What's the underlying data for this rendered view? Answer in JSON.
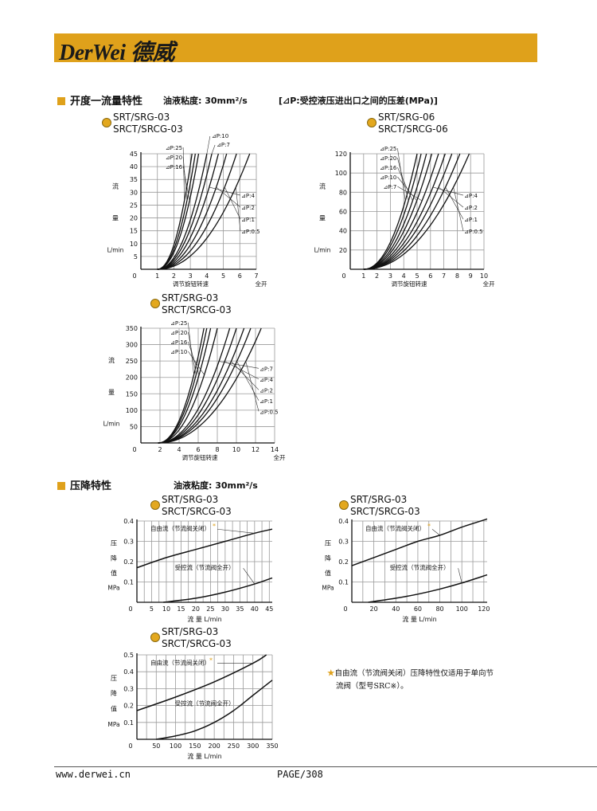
{
  "header": {
    "logo_text": "DerWei 德威",
    "brand_color": "#DFA11B"
  },
  "section1": {
    "title": "开度一流量特性",
    "viscosity": "油液粘度: 30mm²/s",
    "note": "[⊿P:受控液压进出口之间的压差(MPa)]"
  },
  "section2": {
    "title": "压降特性",
    "viscosity": "油液粘度: 30mm²/s"
  },
  "footnote": {
    "star": "★",
    "line1": "自由流（节流阀关闭）压降特性仅适用于单向节",
    "line2": "流阀（型号SRC※）。"
  },
  "footer": {
    "website": "www.derwei.cn",
    "page": "PAGE/308"
  },
  "chart_data": [
    {
      "type": "line",
      "model": [
        "SRT/SRG-03",
        "SRCT/SRCG-03"
      ],
      "xlabel": "调节旋钮转速",
      "xlabel_end": "全开",
      "ylabel": [
        "流",
        "量",
        "L/min"
      ],
      "xlim": [
        0,
        7
      ],
      "ylim": [
        0,
        45
      ],
      "xticks": [
        0,
        1,
        2,
        3,
        4,
        5,
        6,
        7
      ],
      "yticks": [
        5,
        10,
        15,
        20,
        25,
        30,
        35,
        40,
        45
      ],
      "grid": true,
      "series": [
        {
          "name": "⊿P:25",
          "start": 1,
          "x_at_max": 3.1,
          "label_side": "left"
        },
        {
          "name": "⊿P:20",
          "start": 1,
          "x_at_max": 3.3,
          "label_side": "left"
        },
        {
          "name": "⊿P:16",
          "start": 1,
          "x_at_max": 3.5,
          "label_side": "left"
        },
        {
          "name": "⊿P:10",
          "start": 1,
          "x_at_max": 4.0,
          "label_side": "top"
        },
        {
          "name": "⊿P:7",
          "start": 1,
          "x_at_max": 4.3,
          "label_side": "top"
        },
        {
          "name": "⊿P:4",
          "start": 1,
          "x_at_max": 4.7,
          "label_side": "right"
        },
        {
          "name": "⊿P:2",
          "start": 1,
          "x_at_max": 5.2,
          "label_side": "right"
        },
        {
          "name": "⊿P:1",
          "start": 1,
          "x_at_max": 5.8,
          "label_side": "right"
        },
        {
          "name": "⊿P:0.5",
          "start": 1,
          "x_at_max": 6.6,
          "label_side": "right"
        }
      ]
    },
    {
      "type": "line",
      "model": [
        "SRT/SRG-06",
        "SRCT/SRCG-06"
      ],
      "xlabel": "调节旋钮转速",
      "xlabel_end": "全开",
      "ylabel": [
        "流",
        "量",
        "L/min"
      ],
      "xlim": [
        0,
        10
      ],
      "ylim": [
        0,
        120
      ],
      "xticks": [
        0,
        1,
        2,
        3,
        4,
        5,
        6,
        7,
        8,
        9,
        10
      ],
      "yticks": [
        20,
        40,
        60,
        80,
        100,
        120
      ],
      "grid": true,
      "series": [
        {
          "name": "⊿P:25",
          "start": 1,
          "x_at_max": 5.0,
          "label_side": "left"
        },
        {
          "name": "⊿P:20",
          "start": 1,
          "x_at_max": 5.3,
          "label_side": "left"
        },
        {
          "name": "⊿P:16",
          "start": 1,
          "x_at_max": 5.7,
          "label_side": "left"
        },
        {
          "name": "⊿P:10",
          "start": 1,
          "x_at_max": 6.1,
          "label_side": "left"
        },
        {
          "name": "⊿P:7",
          "start": 1,
          "x_at_max": 6.6,
          "label_side": "left"
        },
        {
          "name": "⊿P:4",
          "start": 1,
          "x_at_max": 7.1,
          "label_side": "right"
        },
        {
          "name": "⊿P:2",
          "start": 1,
          "x_at_max": 7.6,
          "label_side": "right"
        },
        {
          "name": "⊿P:1",
          "start": 1,
          "x_at_max": 8.2,
          "label_side": "right"
        },
        {
          "name": "⊿P:0.5",
          "start": 1,
          "x_at_max": 8.9,
          "label_side": "right"
        }
      ]
    },
    {
      "type": "line",
      "model": [
        "SRT/SRG-03",
        "SRCT/SRCG-03"
      ],
      "xlabel": "调节旋钮转速",
      "xlabel_end": "全开",
      "ylabel": [
        "流",
        "量",
        "L/min"
      ],
      "xlim": [
        0,
        14
      ],
      "ylim": [
        0,
        350
      ],
      "xticks": [
        0,
        2,
        4,
        6,
        8,
        10,
        12,
        14
      ],
      "yticks": [
        50,
        100,
        150,
        200,
        250,
        300,
        350
      ],
      "grid": true,
      "series": [
        {
          "name": "⊿P:25",
          "start": 1.8,
          "x_at_max": 6.6,
          "label_side": "left"
        },
        {
          "name": "⊿P:20",
          "start": 1.8,
          "x_at_max": 6.9,
          "label_side": "left"
        },
        {
          "name": "⊿P:16",
          "start": 1.8,
          "x_at_max": 7.3,
          "label_side": "left"
        },
        {
          "name": "⊿P:10",
          "start": 1.8,
          "x_at_max": 8.0,
          "label_side": "left"
        },
        {
          "name": "⊿P:7",
          "start": 1.8,
          "x_at_max": 9.3,
          "label_side": "right"
        },
        {
          "name": "⊿P:4",
          "start": 1.8,
          "x_at_max": 10.0,
          "label_side": "right"
        },
        {
          "name": "⊿P:2",
          "start": 1.8,
          "x_at_max": 10.8,
          "label_side": "right"
        },
        {
          "name": "⊿P:1",
          "start": 1.8,
          "x_at_max": 11.5,
          "label_side": "right"
        },
        {
          "name": "⊿P:0.5",
          "start": 1.8,
          "x_at_max": 12.6,
          "label_side": "right"
        }
      ]
    },
    {
      "type": "line",
      "model": [
        "SRT/SRG-03",
        "SRCT/SRCG-03"
      ],
      "xlabel": "流 量  L/min",
      "ylabel": [
        "压",
        "降",
        "值",
        "MPa"
      ],
      "xlim": [
        0,
        46
      ],
      "ylim": [
        0,
        0.4
      ],
      "xticks": [
        0,
        5,
        10,
        15,
        20,
        25,
        30,
        35,
        40,
        45
      ],
      "yticks": [
        0.1,
        0.2,
        0.3,
        0.4
      ],
      "grid": true,
      "series": [
        {
          "name": "自由流（节流阀关闭）",
          "starred": true,
          "points": [
            [
              0,
              0.17
            ],
            [
              10,
              0.22
            ],
            [
              20,
              0.26
            ],
            [
              30,
              0.3
            ],
            [
              40,
              0.34
            ],
            [
              46,
              0.36
            ]
          ]
        },
        {
          "name": "受控流（节流阀全开）",
          "points": [
            [
              9,
              0
            ],
            [
              20,
              0.02
            ],
            [
              30,
              0.05
            ],
            [
              40,
              0.09
            ],
            [
              46,
              0.12
            ]
          ]
        }
      ]
    },
    {
      "type": "line",
      "model": [
        "SRT/SRG-03",
        "SRCT/SRCG-03"
      ],
      "xlabel": "流 量  L/min",
      "ylabel": [
        "压",
        "降",
        "值",
        "MPa"
      ],
      "xlim": [
        0,
        123
      ],
      "ylim": [
        0,
        0.4
      ],
      "xticks": [
        0,
        20,
        40,
        60,
        80,
        100,
        120
      ],
      "yticks": [
        0.1,
        0.2,
        0.3,
        0.4
      ],
      "grid": true,
      "series": [
        {
          "name": "自由流（节流阀关闭）",
          "starred": true,
          "points": [
            [
              0,
              0.18
            ],
            [
              20,
              0.22
            ],
            [
              40,
              0.26
            ],
            [
              60,
              0.3
            ],
            [
              80,
              0.33
            ],
            [
              100,
              0.37
            ],
            [
              123,
              0.41
            ]
          ]
        },
        {
          "name": "受控流（节流阀全开）",
          "points": [
            [
              15,
              0
            ],
            [
              40,
              0.02
            ],
            [
              60,
              0.04
            ],
            [
              80,
              0.065
            ],
            [
              100,
              0.095
            ],
            [
              123,
              0.135
            ]
          ]
        }
      ]
    },
    {
      "type": "line",
      "model": [
        "SRT/SRG-03",
        "SRCT/SRCG-03"
      ],
      "xlabel": "流 量  L/min",
      "ylabel": [
        "压",
        "降",
        "值",
        "MPa"
      ],
      "xlim": [
        0,
        350
      ],
      "ylim": [
        0,
        0.5
      ],
      "xticks": [
        0,
        50,
        100,
        150,
        200,
        250,
        300,
        350
      ],
      "yticks": [
        0.1,
        0.2,
        0.3,
        0.4,
        0.5
      ],
      "grid": true,
      "series": [
        {
          "name": "自由流（节流阀关闭）",
          "starred": true,
          "points": [
            [
              0,
              0.17
            ],
            [
              100,
              0.25
            ],
            [
              200,
              0.34
            ],
            [
              300,
              0.45
            ],
            [
              335,
              0.5
            ]
          ]
        },
        {
          "name": "受控流（节流阀全开）",
          "points": [
            [
              50,
              0
            ],
            [
              100,
              0.02
            ],
            [
              150,
              0.05
            ],
            [
              200,
              0.1
            ],
            [
              250,
              0.17
            ],
            [
              300,
              0.26
            ],
            [
              350,
              0.35
            ]
          ]
        }
      ]
    }
  ]
}
